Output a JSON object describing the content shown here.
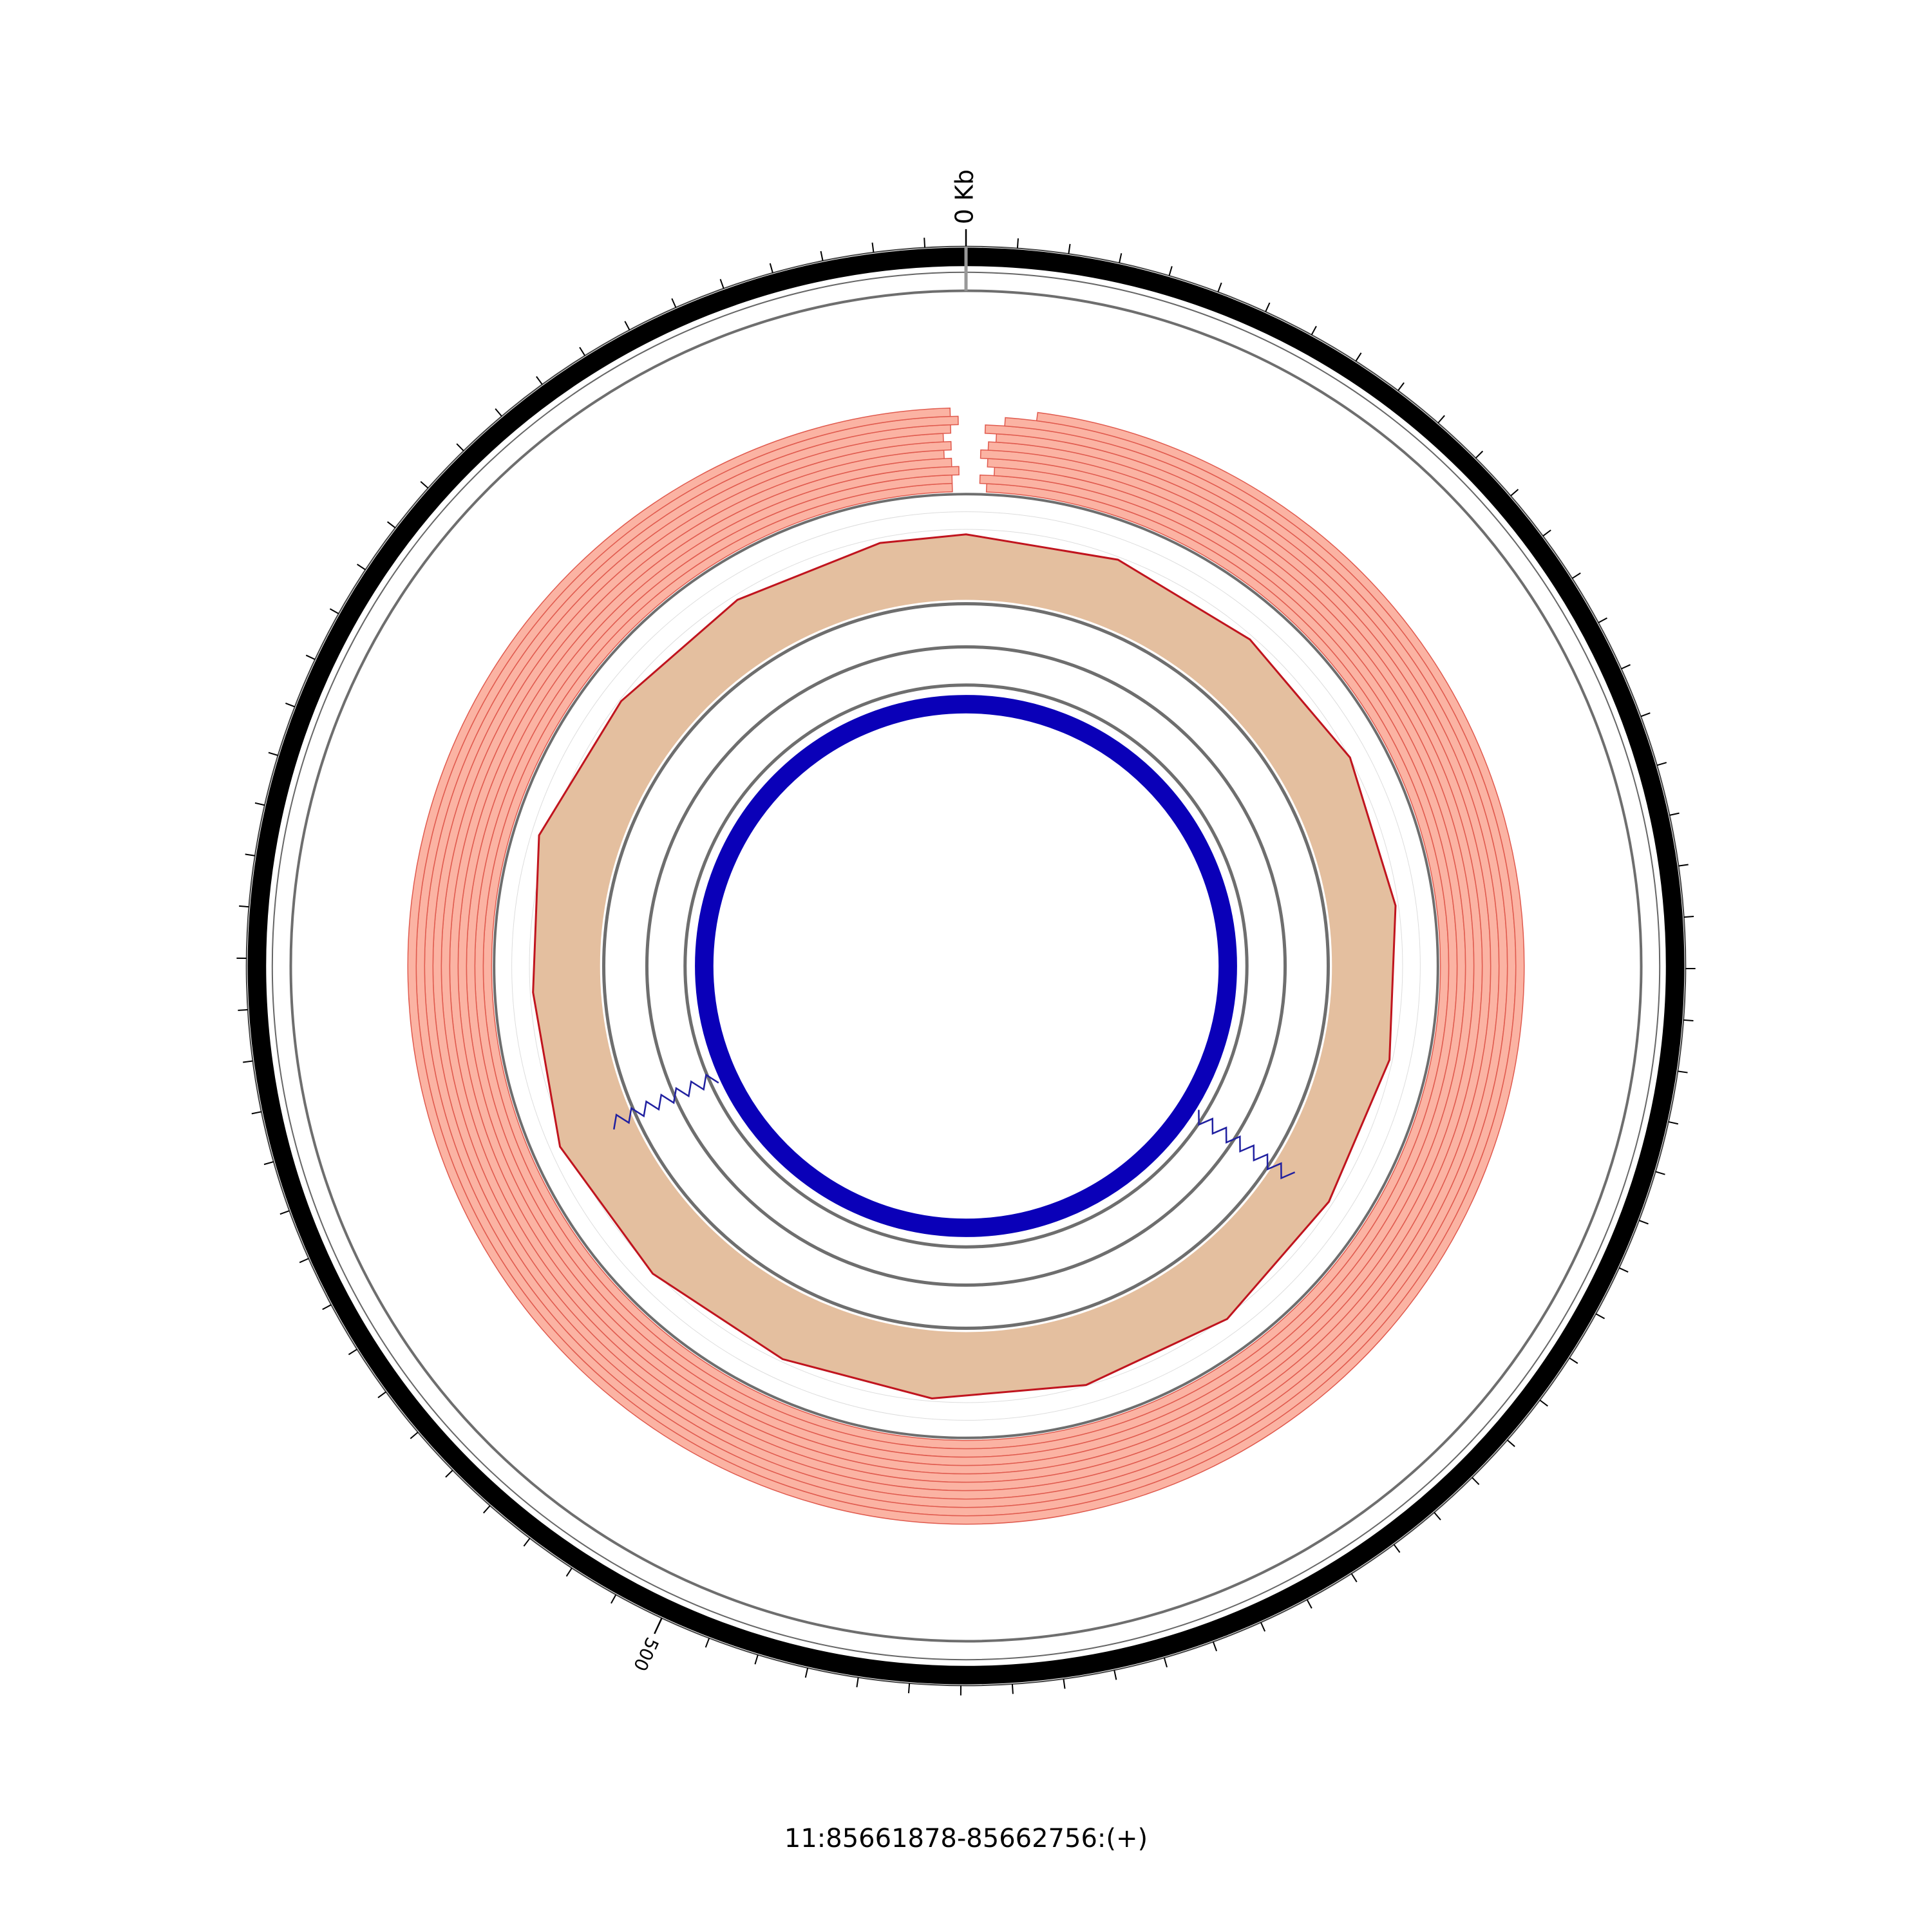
{
  "chart_data": {
    "type": "circos",
    "title": "11:85661878-85662756:(+)",
    "xlim": [
      0,
      878
    ],
    "xticks": [
      {
        "value": 0,
        "label": "0 Kb"
      },
      500
    ],
    "minor_ticks": [
      10,
      20,
      30,
      40,
      50,
      60,
      70,
      80,
      90,
      100,
      110,
      120,
      130,
      140,
      150,
      160,
      170,
      180,
      190,
      200,
      210,
      220,
      230,
      240,
      250,
      260,
      270,
      280,
      290,
      300,
      310,
      320,
      330,
      340,
      350,
      360,
      370,
      380,
      390,
      400,
      410,
      420,
      430,
      440,
      450,
      460,
      470,
      480,
      490,
      510,
      520,
      530,
      540,
      550,
      560,
      570,
      580,
      590,
      600,
      610,
      620,
      630,
      640,
      650,
      660,
      670,
      680,
      690,
      700,
      710,
      720,
      730,
      740,
      750,
      760,
      770,
      780,
      790,
      800,
      810,
      820,
      830,
      840,
      850,
      860,
      870
    ],
    "reads": {
      "color": "#fbb3a3",
      "stroke": "#e05a4e",
      "rows": [
        [
          6,
          874
        ],
        [
          4,
          874
        ],
        [
          8,
          876
        ],
        [
          6,
          874
        ],
        [
          4,
          872
        ],
        [
          6,
          874
        ],
        [
          8,
          872
        ],
        [
          5,
          874
        ],
        [
          10,
          876
        ],
        [
          18,
          874
        ]
      ]
    },
    "coverage": {
      "color": "#e4bf9f",
      "line_color": "#c0141e",
      "ylim": [
        0,
        100
      ],
      "x": [
        0,
        50,
        100,
        150,
        200,
        250,
        300,
        350,
        400,
        450,
        500,
        550,
        600,
        650,
        700,
        750,
        800,
        850
      ],
      "values": [
        62,
        64,
        63,
        67,
        64,
        64,
        63,
        69,
        66,
        64,
        64,
        69,
        74,
        64,
        76,
        65,
        62,
        62
      ]
    },
    "exon": {
      "color": "#0a00b8",
      "x": [
        0,
        878
      ]
    },
    "junctions": {
      "color": "#2020a0",
      "x": [
        300,
        600
      ]
    }
  }
}
